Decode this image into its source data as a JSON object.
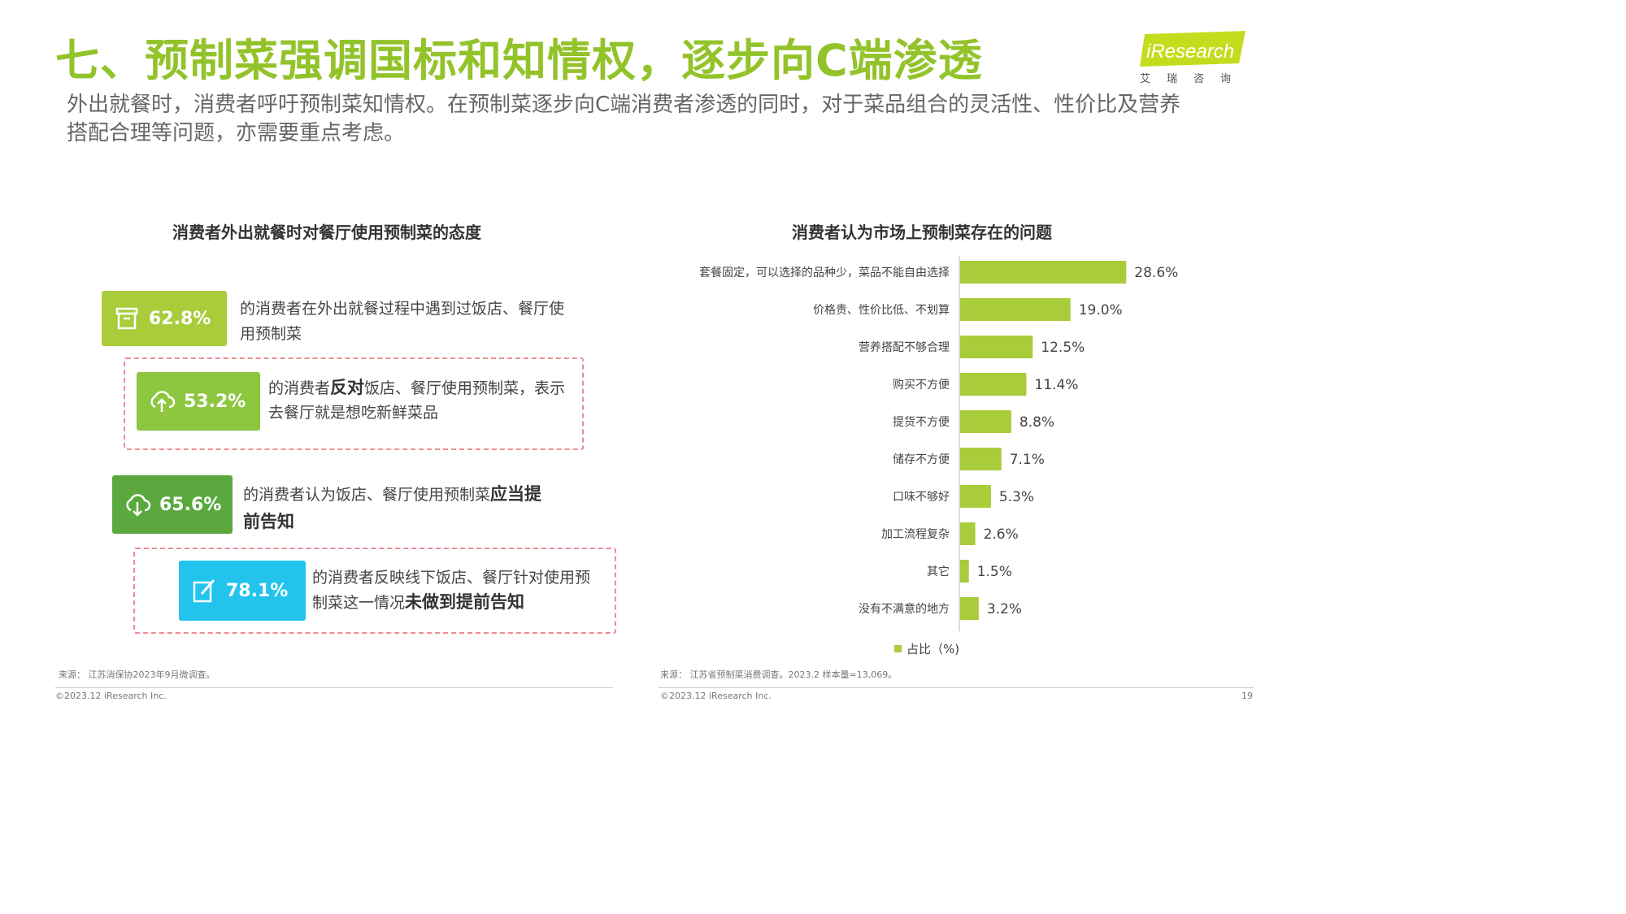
{
  "header": {
    "title": "七、预制菜强调国标和知情权，逐步向C端渗透",
    "subtitle": "外出就餐时，消费者呼吁预制菜知情权。在预制菜逐步向C端消费者渗透的同时，对于菜品组合的灵活性、性价比及营养搭配合理等问题，亦需要重点考虑。",
    "logo_text": "iResearch",
    "logo_sub": "艾瑞咨询",
    "brand_color": "#93c32a"
  },
  "left": {
    "section_title": "消费者外出就餐时对餐厅使用预制菜的态度",
    "stats": [
      {
        "value": "62.8%",
        "icon": "archive-box-icon",
        "color": "#a8cc3a",
        "text_pre": "的消费者在外出就餐过程中遇到过饭店、餐厅使用预制菜",
        "text_bold": "",
        "text_post": ""
      },
      {
        "value": "53.2%",
        "icon": "cloud-upload-icon",
        "color": "#8dc63f",
        "text_pre": "的消费者",
        "text_bold": "反对",
        "text_post": "饭店、餐厅使用预制菜，表示去餐厅就是想吃新鲜菜品"
      },
      {
        "value": "65.6%",
        "icon": "cloud-download-icon",
        "color": "#5aa83e",
        "text_pre": "的消费者认为饭店、餐厅使用预制菜",
        "text_bold": "应当提前告知",
        "text_post": ""
      },
      {
        "value": "78.1%",
        "icon": "edit-document-icon",
        "color": "#22c4ee",
        "text_pre": "的消费者反映线下饭店、餐厅针对使用预制菜这一情况",
        "text_bold": "未做到提前告知",
        "text_post": ""
      }
    ],
    "source": "来源： 江苏消保协2023年9月微调查。",
    "copyright": "©2023.12 iResearch Inc."
  },
  "right": {
    "section_title": "消费者认为市场上预制菜存在的问题",
    "source": "来源： 江苏省预制菜消费调查。2023.2 样本量=13,069。",
    "copyright": "©2023.12 iResearch Inc.",
    "page_number": "19"
  },
  "chart_data": {
    "type": "bar",
    "orientation": "horizontal",
    "categories": [
      "套餐固定，可以选择的品种少，菜品不能自由选择",
      "价格贵、性价比低、不划算",
      "营养搭配不够合理",
      "购买不方便",
      "提货不方便",
      "储存不方便",
      "口味不够好",
      "加工流程复杂",
      "其它",
      "没有不满意的地方"
    ],
    "series": [
      {
        "name": "占比（%)",
        "values": [
          28.6,
          19.0,
          12.5,
          11.4,
          8.8,
          7.1,
          5.3,
          2.6,
          1.5,
          3.2
        ],
        "color": "#a8cc3a"
      }
    ],
    "value_labels": [
      "28.6%",
      "19.0%",
      "12.5%",
      "11.4%",
      "8.8%",
      "7.1%",
      "5.3%",
      "2.6%",
      "1.5%",
      "3.2%"
    ],
    "xlim": [
      0,
      30
    ],
    "grid": false,
    "legend_position": "bottom"
  }
}
